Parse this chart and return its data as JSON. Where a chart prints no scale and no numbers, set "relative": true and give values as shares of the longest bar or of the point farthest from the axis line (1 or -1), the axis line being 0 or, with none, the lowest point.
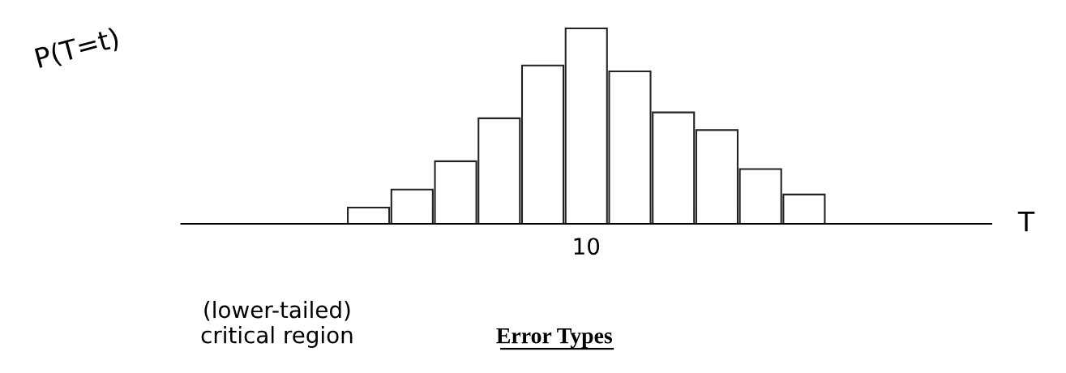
{
  "chart_data": {
    "type": "bar",
    "title": "Error Types",
    "relative": true,
    "categories": [
      null,
      null,
      null,
      null,
      null,
      "10",
      null,
      null,
      null,
      null,
      null
    ],
    "values": [
      0.083,
      0.175,
      0.32,
      0.54,
      0.81,
      1,
      0.78,
      0.57,
      0.48,
      0.28,
      0.15
    ],
    "color": "#ffffff",
    "annotations": [
      "P(T=t)",
      "T",
      "(lower-tailed)\ncritical region"
    ]
  }
}
